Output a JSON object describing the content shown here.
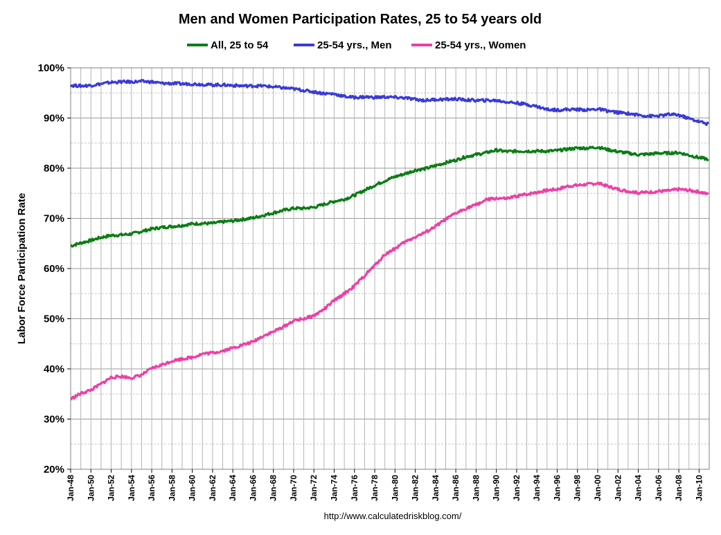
{
  "chart_data": {
    "type": "line",
    "title": "Men and Women Participation Rates, 25 to 54 years old",
    "ylabel": "Labor Force Participation Rate",
    "xlabel": "",
    "source": "http://www.calculatedriskblog.com/",
    "ylim": [
      20,
      100
    ],
    "xlim": [
      1948.0,
      2011.0
    ],
    "y_tick_labels": [
      "20%",
      "30%",
      "40%",
      "50%",
      "60%",
      "70%",
      "80%",
      "90%",
      "100%"
    ],
    "x_tick_labels": [
      "Jan-48",
      "Jan-50",
      "Jan-52",
      "Jan-54",
      "Jan-56",
      "Jan-58",
      "Jan-60",
      "Jan-62",
      "Jan-64",
      "Jan-66",
      "Jan-68",
      "Jan-70",
      "Jan-72",
      "Jan-74",
      "Jan-76",
      "Jan-78",
      "Jan-80",
      "Jan-82",
      "Jan-84",
      "Jan-86",
      "Jan-88",
      "Jan-90",
      "Jan-92",
      "Jan-94",
      "Jan-96",
      "Jan-98",
      "Jan-00",
      "Jan-02",
      "Jan-04",
      "Jan-06",
      "Jan-08",
      "Jan-10"
    ],
    "grid": true,
    "legend_position": "top",
    "series": [
      {
        "name": "All, 25 to 54",
        "color": "#0a7d14",
        "x": [
          1948,
          1949,
          1950,
          1951,
          1952,
          1953,
          1954,
          1955,
          1956,
          1957,
          1958,
          1959,
          1960,
          1961,
          1962,
          1963,
          1964,
          1965,
          1966,
          1967,
          1968,
          1969,
          1970,
          1971,
          1972,
          1973,
          1974,
          1975,
          1976,
          1977,
          1978,
          1979,
          1980,
          1981,
          1982,
          1983,
          1984,
          1985,
          1986,
          1987,
          1988,
          1989,
          1990,
          1991,
          1992,
          1993,
          1994,
          1995,
          1996,
          1997,
          1998,
          1999,
          2000,
          2001,
          2002,
          2003,
          2004,
          2005,
          2006,
          2007,
          2008,
          2009,
          2010,
          2010.9
        ],
        "values": [
          64.5,
          65.1,
          65.6,
          66.2,
          66.6,
          66.7,
          66.9,
          67.4,
          67.9,
          68.2,
          68.4,
          68.6,
          68.9,
          69.0,
          69.0,
          69.3,
          69.5,
          69.8,
          70.1,
          70.6,
          71.1,
          71.6,
          72.0,
          72.0,
          72.2,
          72.8,
          73.4,
          73.8,
          74.6,
          75.6,
          76.6,
          77.5,
          78.3,
          78.9,
          79.6,
          79.9,
          80.5,
          81.1,
          81.6,
          82.3,
          82.7,
          83.1,
          83.6,
          83.3,
          83.4,
          83.4,
          83.4,
          83.4,
          83.5,
          83.8,
          84.0,
          84.0,
          84.2,
          83.7,
          83.3,
          83.0,
          82.7,
          82.8,
          83.0,
          83.0,
          83.1,
          82.6,
          82.1,
          81.8
        ]
      },
      {
        "name": "25-54 yrs., Men",
        "color": "#3a3ad8",
        "x": [
          1948,
          1949,
          1950,
          1951,
          1952,
          1953,
          1954,
          1955,
          1956,
          1957,
          1958,
          1959,
          1960,
          1961,
          1962,
          1963,
          1964,
          1965,
          1966,
          1967,
          1968,
          1969,
          1970,
          1971,
          1972,
          1973,
          1974,
          1975,
          1976,
          1977,
          1978,
          1979,
          1980,
          1981,
          1982,
          1983,
          1984,
          1985,
          1986,
          1987,
          1988,
          1989,
          1990,
          1991,
          1992,
          1993,
          1994,
          1995,
          1996,
          1997,
          1998,
          1999,
          2000,
          2001,
          2002,
          2003,
          2004,
          2005,
          2006,
          2007,
          2008,
          2009,
          2010,
          2010.9
        ],
        "values": [
          96.5,
          96.4,
          96.5,
          96.8,
          97.1,
          97.2,
          97.2,
          97.3,
          97.2,
          96.9,
          96.9,
          96.8,
          96.8,
          96.7,
          96.6,
          96.6,
          96.5,
          96.4,
          96.4,
          96.4,
          96.2,
          96.0,
          95.8,
          95.5,
          95.2,
          94.9,
          94.8,
          94.3,
          94.1,
          94.2,
          94.1,
          94.2,
          94.1,
          94.0,
          93.7,
          93.5,
          93.7,
          93.7,
          93.8,
          93.6,
          93.5,
          93.5,
          93.5,
          93.2,
          93.0,
          92.7,
          92.3,
          91.7,
          91.6,
          91.7,
          91.7,
          91.6,
          91.8,
          91.4,
          91.1,
          90.9,
          90.6,
          90.4,
          90.4,
          90.7,
          90.6,
          89.9,
          89.3,
          88.8
        ]
      },
      {
        "name": "25-54 yrs., Women",
        "color": "#ee3fa6",
        "x": [
          1948,
          1949,
          1950,
          1951,
          1952,
          1953,
          1954,
          1955,
          1956,
          1957,
          1958,
          1959,
          1960,
          1961,
          1962,
          1963,
          1964,
          1965,
          1966,
          1967,
          1968,
          1969,
          1970,
          1971,
          1972,
          1973,
          1974,
          1975,
          1976,
          1977,
          1978,
          1979,
          1980,
          1981,
          1982,
          1983,
          1984,
          1985,
          1986,
          1987,
          1988,
          1989,
          1990,
          1991,
          1992,
          1993,
          1994,
          1995,
          1996,
          1997,
          1998,
          1999,
          2000,
          2001,
          2002,
          2003,
          2004,
          2005,
          2006,
          2007,
          2008,
          2009,
          2010,
          2010.9
        ],
        "values": [
          34.0,
          35.1,
          35.8,
          37.0,
          38.3,
          38.5,
          38.2,
          38.8,
          40.1,
          40.8,
          41.6,
          42.0,
          42.3,
          43.0,
          43.2,
          43.6,
          44.2,
          44.8,
          45.4,
          46.6,
          47.4,
          48.4,
          49.6,
          50.0,
          50.6,
          51.9,
          53.6,
          55.0,
          56.5,
          58.6,
          60.6,
          62.8,
          64.0,
          65.3,
          66.3,
          67.2,
          68.4,
          69.8,
          71.0,
          72.0,
          72.7,
          73.7,
          74.0,
          73.9,
          74.4,
          74.8,
          75.2,
          75.6,
          75.8,
          76.4,
          76.6,
          76.8,
          77.0,
          76.4,
          75.8,
          75.4,
          75.1,
          75.2,
          75.4,
          75.5,
          75.8,
          75.6,
          75.3,
          74.8
        ]
      }
    ]
  }
}
